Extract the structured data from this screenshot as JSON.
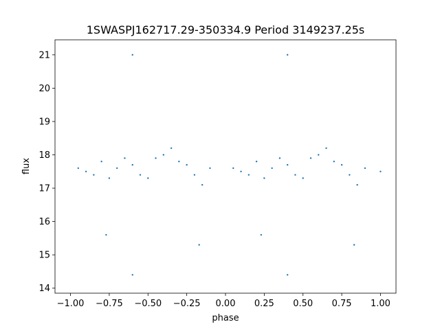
{
  "chart_data": {
    "type": "scatter",
    "title": "1SWASPJ162717.29-350334.9 Period 3149237.25s",
    "xlabel": "phase",
    "ylabel": "flux",
    "xlim": [
      -1.1,
      1.1
    ],
    "ylim": [
      13.85,
      21.45
    ],
    "xticks": [
      -1.0,
      -0.75,
      -0.5,
      -0.25,
      0.0,
      0.25,
      0.5,
      0.75,
      1.0
    ],
    "xtick_labels": [
      "−1.00",
      "−0.75",
      "−0.50",
      "−0.25",
      "0.00",
      "0.25",
      "0.50",
      "0.75",
      "1.00"
    ],
    "yticks": [
      14,
      15,
      16,
      17,
      18,
      19,
      20,
      21
    ],
    "ytick_labels": [
      "14",
      "15",
      "16",
      "17",
      "18",
      "19",
      "20",
      "21"
    ],
    "grid": false,
    "marker_color": "#1f77b4",
    "series": [
      {
        "x_range": [
          -1.0,
          1.0
        ],
        "typical_flux_range": [
          16.5,
          19.0
        ],
        "baseline_flux": 17.6,
        "extreme_points_flux_range": [
          14.3,
          21.2
        ],
        "sample_points": [
          {
            "x": -0.95,
            "y": 17.6
          },
          {
            "x": -0.9,
            "y": 17.5
          },
          {
            "x": -0.85,
            "y": 17.4
          },
          {
            "x": -0.8,
            "y": 17.8
          },
          {
            "x": -0.75,
            "y": 17.3
          },
          {
            "x": -0.7,
            "y": 17.6
          },
          {
            "x": -0.65,
            "y": 17.9
          },
          {
            "x": -0.6,
            "y": 17.7
          },
          {
            "x": -0.55,
            "y": 17.4
          },
          {
            "x": -0.5,
            "y": 17.3
          },
          {
            "x": -0.45,
            "y": 17.9
          },
          {
            "x": -0.4,
            "y": 18.0
          },
          {
            "x": -0.35,
            "y": 18.2
          },
          {
            "x": -0.3,
            "y": 17.8
          },
          {
            "x": -0.25,
            "y": 17.7
          },
          {
            "x": -0.2,
            "y": 17.4
          },
          {
            "x": -0.15,
            "y": 17.1
          },
          {
            "x": -0.1,
            "y": 17.6
          },
          {
            "x": 0.05,
            "y": 17.6
          },
          {
            "x": 0.1,
            "y": 17.5
          },
          {
            "x": 0.15,
            "y": 17.4
          },
          {
            "x": 0.2,
            "y": 17.8
          },
          {
            "x": 0.25,
            "y": 17.3
          },
          {
            "x": 0.3,
            "y": 17.6
          },
          {
            "x": 0.35,
            "y": 17.9
          },
          {
            "x": 0.4,
            "y": 17.7
          },
          {
            "x": 0.45,
            "y": 17.4
          },
          {
            "x": 0.5,
            "y": 17.3
          },
          {
            "x": 0.55,
            "y": 17.9
          },
          {
            "x": 0.6,
            "y": 18.0
          },
          {
            "x": 0.65,
            "y": 18.2
          },
          {
            "x": 0.7,
            "y": 17.8
          },
          {
            "x": 0.75,
            "y": 17.7
          },
          {
            "x": 0.8,
            "y": 17.4
          },
          {
            "x": 0.85,
            "y": 17.1
          },
          {
            "x": 0.9,
            "y": 17.6
          },
          {
            "x": 1.0,
            "y": 17.5
          },
          {
            "x": -0.6,
            "y": 21.0
          },
          {
            "x": 0.4,
            "y": 21.0
          },
          {
            "x": -0.17,
            "y": 15.3
          },
          {
            "x": 0.83,
            "y": 15.3
          },
          {
            "x": -0.77,
            "y": 15.6
          },
          {
            "x": 0.23,
            "y": 15.6
          },
          {
            "x": -0.6,
            "y": 14.4
          },
          {
            "x": 0.4,
            "y": 14.4
          }
        ]
      }
    ]
  }
}
